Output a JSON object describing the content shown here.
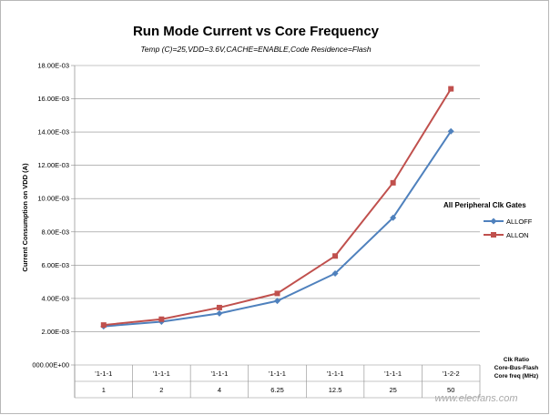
{
  "chart_data": {
    "type": "line",
    "title": "Run Mode Current vs Core Frequency",
    "subtitle": "Temp (C)=25,VDD=3.6V,CACHE=ENABLE,Code Residence=Flash",
    "ylabel": "Current Consumption on VDD (A)",
    "ylim": [
      0,
      0.018
    ],
    "yticks": [
      {
        "value": 0,
        "label": "000.00E+00"
      },
      {
        "value": 0.002,
        "label": "2.00E-03"
      },
      {
        "value": 0.004,
        "label": "4.00E-03"
      },
      {
        "value": 0.006,
        "label": "6.00E-03"
      },
      {
        "value": 0.008,
        "label": "8.00E-03"
      },
      {
        "value": 0.01,
        "label": "10.00E-03"
      },
      {
        "value": 0.012,
        "label": "12.00E-03"
      },
      {
        "value": 0.014,
        "label": "14.00E-03"
      },
      {
        "value": 0.016,
        "label": "16.00E-03"
      },
      {
        "value": 0.018,
        "label": "18.00E-03"
      }
    ],
    "grid": true,
    "clk_ratio": [
      "'1-1-1",
      "'1-1-1",
      "'1-1-1",
      "'1-1-1",
      "'1-1-1",
      "'1-1-1",
      "'1-2-2"
    ],
    "categories": [
      "1",
      "2",
      "4",
      "6.25",
      "12.5",
      "25",
      "50"
    ],
    "row_titles": [
      "Clk Ratio",
      "Core-Bus-Flash",
      "Core freq (MHz)"
    ],
    "legend": {
      "title": "All Peripheral Clk Gates",
      "position": "right"
    },
    "series": [
      {
        "name": "ALLOFF",
        "color": "#4f81bd",
        "marker": "diamond",
        "values": [
          0.00232,
          0.0026,
          0.0031,
          0.00385,
          0.0055,
          0.00885,
          0.01405
        ]
      },
      {
        "name": "ALLON",
        "color": "#c0504d",
        "marker": "square",
        "values": [
          0.0024,
          0.00275,
          0.00345,
          0.0043,
          0.00655,
          0.01095,
          0.0166
        ]
      }
    ]
  },
  "watermark": "www.elecfans.com"
}
